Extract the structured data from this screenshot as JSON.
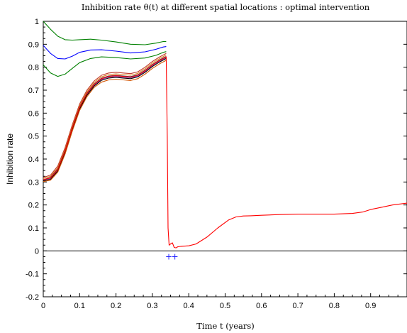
{
  "chart_data": {
    "type": "line",
    "title": "Inhibition rate θ(t) at different spatial locations : optimal intervention",
    "xlabel": "Time t (years)",
    "ylabel": "Inhibition rate",
    "xlim": [
      0,
      1
    ],
    "ylim": [
      -0.2,
      1
    ],
    "xticks": [
      "0",
      "0.1",
      "0.2",
      "0.3",
      "0.4",
      "0.5",
      "0.6",
      "0.7",
      "0.8",
      "0.9"
    ],
    "yticks": [
      "-0.2",
      "-0.1",
      "0",
      "0.1",
      "0.2",
      "0.3",
      "0.4",
      "0.5",
      "0.6",
      "0.7",
      "0.8",
      "0.9",
      "1"
    ],
    "grid": false,
    "markers": [
      {
        "label": "+",
        "x": 0.345,
        "y": -0.025,
        "color": "#1f1fff"
      },
      {
        "label": "+",
        "x": 0.362,
        "y": -0.025,
        "color": "#1f1fff"
      }
    ],
    "series": [
      {
        "color": "#008000",
        "x": [
          0,
          0.02,
          0.04,
          0.06,
          0.08,
          0.1,
          0.13,
          0.16,
          0.2,
          0.24,
          0.28,
          0.31,
          0.33,
          0.338
        ],
        "y": [
          1.0,
          0.965,
          0.935,
          0.92,
          0.918,
          0.92,
          0.922,
          0.918,
          0.91,
          0.9,
          0.898,
          0.905,
          0.912,
          0.912
        ]
      },
      {
        "color": "#0000ff",
        "x": [
          0,
          0.02,
          0.04,
          0.06,
          0.08,
          0.1,
          0.13,
          0.16,
          0.2,
          0.24,
          0.28,
          0.31,
          0.33,
          0.338
        ],
        "y": [
          0.895,
          0.86,
          0.838,
          0.836,
          0.848,
          0.865,
          0.875,
          0.876,
          0.87,
          0.862,
          0.867,
          0.878,
          0.888,
          0.89
        ]
      },
      {
        "color": "#008000",
        "x": [
          0,
          0.02,
          0.04,
          0.06,
          0.08,
          0.1,
          0.13,
          0.16,
          0.2,
          0.24,
          0.28,
          0.31,
          0.33,
          0.338
        ],
        "y": [
          0.81,
          0.775,
          0.76,
          0.77,
          0.795,
          0.82,
          0.838,
          0.845,
          0.842,
          0.836,
          0.84,
          0.852,
          0.865,
          0.868
        ]
      },
      {
        "color": "#c0392b",
        "x": [
          0,
          0.02,
          0.04,
          0.06,
          0.08,
          0.1,
          0.12,
          0.14,
          0.16,
          0.18,
          0.2,
          0.22,
          0.24,
          0.26,
          0.28,
          0.3,
          0.32,
          0.338
        ],
        "y": [
          0.32,
          0.33,
          0.37,
          0.45,
          0.55,
          0.64,
          0.7,
          0.74,
          0.765,
          0.775,
          0.778,
          0.775,
          0.772,
          0.78,
          0.8,
          0.825,
          0.845,
          0.86
        ]
      },
      {
        "color": "#e67e22",
        "x": [
          0,
          0.02,
          0.04,
          0.06,
          0.08,
          0.1,
          0.12,
          0.14,
          0.16,
          0.18,
          0.2,
          0.22,
          0.24,
          0.26,
          0.28,
          0.3,
          0.32,
          0.338
        ],
        "y": [
          0.315,
          0.325,
          0.363,
          0.443,
          0.543,
          0.633,
          0.693,
          0.733,
          0.758,
          0.768,
          0.771,
          0.768,
          0.765,
          0.773,
          0.793,
          0.818,
          0.838,
          0.853
        ]
      },
      {
        "color": "#2c3e50",
        "x": [
          0,
          0.02,
          0.04,
          0.06,
          0.08,
          0.1,
          0.12,
          0.14,
          0.16,
          0.18,
          0.2,
          0.22,
          0.24,
          0.26,
          0.28,
          0.3,
          0.32,
          0.338
        ],
        "y": [
          0.31,
          0.32,
          0.357,
          0.437,
          0.537,
          0.627,
          0.687,
          0.727,
          0.752,
          0.762,
          0.765,
          0.762,
          0.759,
          0.767,
          0.787,
          0.812,
          0.832,
          0.847
        ]
      },
      {
        "color": "#8e44ad",
        "x": [
          0,
          0.02,
          0.04,
          0.06,
          0.08,
          0.1,
          0.12,
          0.14,
          0.16,
          0.18,
          0.2,
          0.22,
          0.24,
          0.26,
          0.28,
          0.3,
          0.32,
          0.338
        ],
        "y": [
          0.308,
          0.316,
          0.352,
          0.432,
          0.532,
          0.622,
          0.682,
          0.722,
          0.747,
          0.757,
          0.76,
          0.757,
          0.754,
          0.762,
          0.782,
          0.807,
          0.827,
          0.842
        ]
      },
      {
        "color": "#000000",
        "x": [
          0,
          0.02,
          0.04,
          0.06,
          0.08,
          0.1,
          0.12,
          0.14,
          0.16,
          0.18,
          0.2,
          0.22,
          0.24,
          0.26,
          0.28,
          0.3,
          0.32,
          0.338
        ],
        "y": [
          0.305,
          0.312,
          0.348,
          0.428,
          0.528,
          0.618,
          0.678,
          0.718,
          0.743,
          0.753,
          0.756,
          0.753,
          0.75,
          0.758,
          0.778,
          0.803,
          0.823,
          0.838
        ]
      },
      {
        "color": "#d35400",
        "x": [
          0,
          0.02,
          0.04,
          0.06,
          0.08,
          0.1,
          0.12,
          0.14,
          0.16,
          0.18,
          0.2,
          0.22,
          0.24,
          0.26,
          0.28,
          0.3,
          0.32,
          0.338
        ],
        "y": [
          0.302,
          0.308,
          0.343,
          0.422,
          0.522,
          0.612,
          0.672,
          0.712,
          0.735,
          0.745,
          0.748,
          0.745,
          0.742,
          0.75,
          0.77,
          0.795,
          0.815,
          0.83
        ]
      },
      {
        "color": "#ff0000",
        "x": [
          0,
          0.02,
          0.04,
          0.06,
          0.08,
          0.1,
          0.12,
          0.14,
          0.16,
          0.18,
          0.2,
          0.22,
          0.24,
          0.26,
          0.28,
          0.3,
          0.32,
          0.338,
          0.341,
          0.343,
          0.346,
          0.35,
          0.355,
          0.36,
          0.365,
          0.37,
          0.38,
          0.4,
          0.42,
          0.45,
          0.48,
          0.51,
          0.53,
          0.55,
          0.57,
          0.6,
          0.65,
          0.7,
          0.75,
          0.8,
          0.85,
          0.88,
          0.9,
          0.93,
          0.96,
          1.0
        ],
        "y": [
          0.31,
          0.318,
          0.355,
          0.435,
          0.535,
          0.625,
          0.685,
          0.725,
          0.75,
          0.76,
          0.763,
          0.76,
          0.757,
          0.765,
          0.785,
          0.81,
          0.83,
          0.845,
          0.5,
          0.1,
          0.025,
          0.03,
          0.035,
          0.015,
          0.013,
          0.018,
          0.02,
          0.022,
          0.03,
          0.06,
          0.1,
          0.135,
          0.148,
          0.152,
          0.153,
          0.155,
          0.158,
          0.16,
          0.16,
          0.16,
          0.163,
          0.17,
          0.18,
          0.19,
          0.2,
          0.208
        ]
      }
    ]
  }
}
